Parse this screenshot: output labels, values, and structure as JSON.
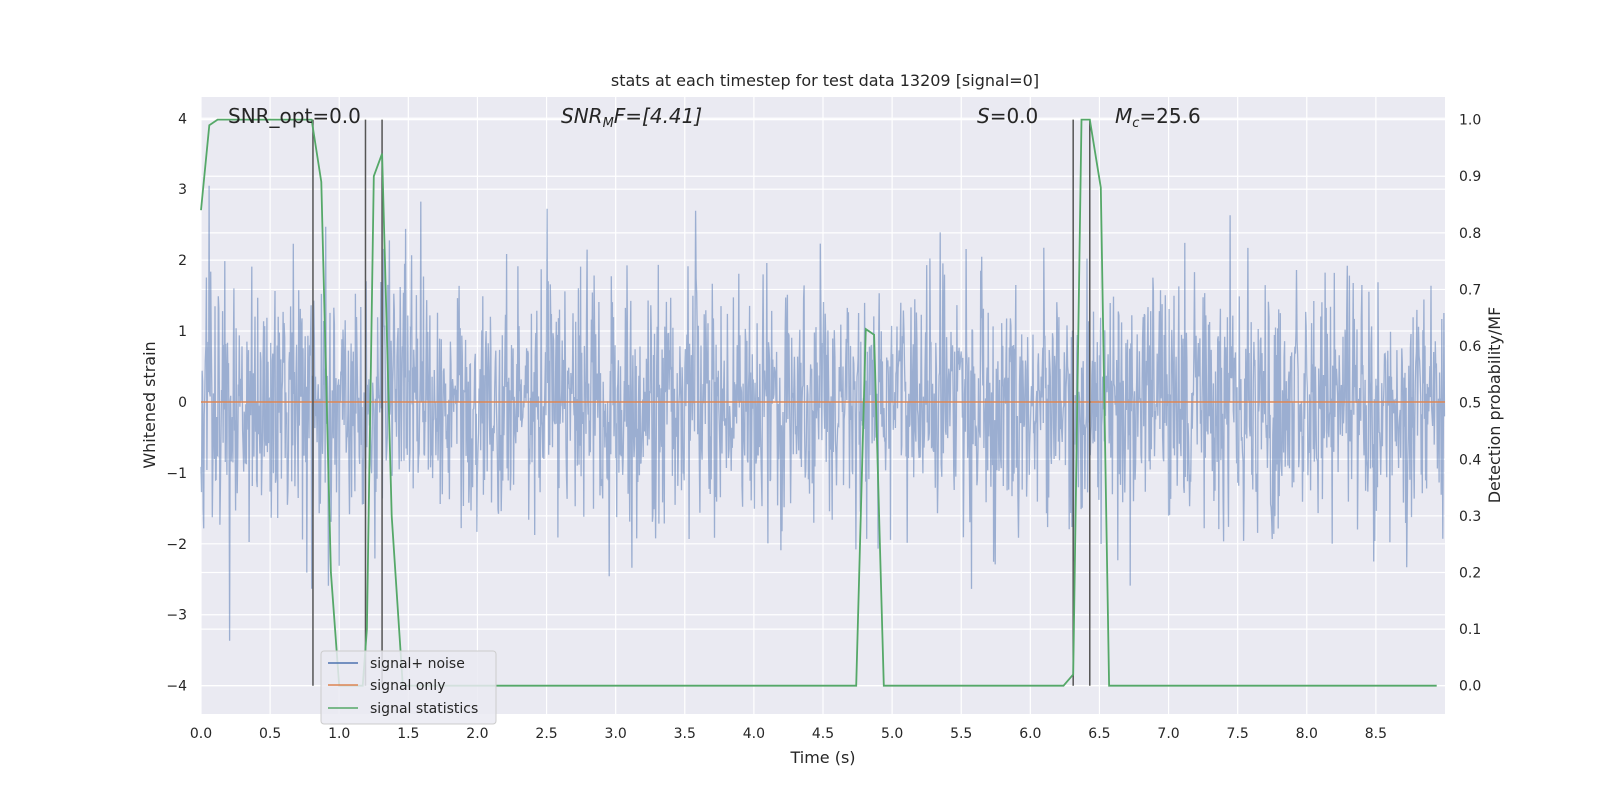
{
  "chart_data": {
    "type": "line",
    "title": "stats at each timestep for test data 13209 [signal=0]",
    "xlabel": "Time (s)",
    "ylabel": "Whitened strain",
    "ylabel_right": "Detection probability/MF",
    "xlim": [
      0,
      9.0
    ],
    "ylim": [
      -4.4,
      4.3
    ],
    "ylim_right": [
      -0.05,
      1.04
    ],
    "grid": true,
    "legend_position": "lower-left",
    "xticks": [
      "0.0",
      "0.5",
      "1.0",
      "1.5",
      "2.0",
      "2.5",
      "3.0",
      "3.5",
      "4.0",
      "4.5",
      "5.0",
      "5.5",
      "6.0",
      "6.5",
      "7.0",
      "7.5",
      "8.0",
      "8.5"
    ],
    "yticks_left": [
      "4",
      "3",
      "2",
      "1",
      "0",
      "−1",
      "−2",
      "−3",
      "−4"
    ],
    "yticks_right": [
      "1.0",
      "0.9",
      "0.8",
      "0.7",
      "0.6",
      "0.5",
      "0.4",
      "0.3",
      "0.2",
      "0.1",
      "0.0"
    ],
    "annotations": {
      "snr_opt": "SNR_opt=0.0",
      "snr_mf_base": "SNR",
      "snr_mf_sub": "M",
      "snr_mf_rest": "F=[4.41]",
      "s_stat_base": "S",
      "s_stat_rest": "=0.0",
      "mc_base": "M",
      "mc_sub": "c",
      "mc_rest": "=25.6"
    },
    "series": [
      {
        "name": "signal+ noise",
        "color": "#4c72b0",
        "axis": "left",
        "kind": "noise",
        "sigma": 0.85,
        "duration": 9.0,
        "sample_rate": 256
      },
      {
        "name": "signal only",
        "color": "#dd8452",
        "axis": "left",
        "kind": "line",
        "x": [
          0,
          9.0
        ],
        "y": [
          0,
          0
        ]
      },
      {
        "name": "signal statistics",
        "color": "#55a868",
        "axis": "right",
        "kind": "line",
        "x": [
          0.0,
          0.06,
          0.12,
          0.55,
          0.8,
          0.87,
          0.94,
          1.0,
          1.1,
          1.17,
          1.2,
          1.25,
          1.31,
          1.38,
          1.46,
          1.55,
          4.74,
          4.81,
          4.87,
          4.94,
          6.24,
          6.31,
          6.37,
          6.43,
          6.51,
          6.57,
          8.94
        ],
        "y": [
          0.84,
          0.99,
          1.0,
          1.0,
          1.0,
          0.89,
          0.2,
          0.0,
          0.0,
          0.0,
          0.1,
          0.9,
          0.94,
          0.3,
          0.0,
          0.0,
          0.0,
          0.63,
          0.62,
          0.0,
          0.0,
          0.02,
          1.0,
          1.0,
          0.88,
          0.0,
          0.0
        ]
      }
    ],
    "vlines": [
      0.81,
      1.19,
      1.31,
      6.31,
      6.43
    ],
    "vline_color": "#555555"
  }
}
